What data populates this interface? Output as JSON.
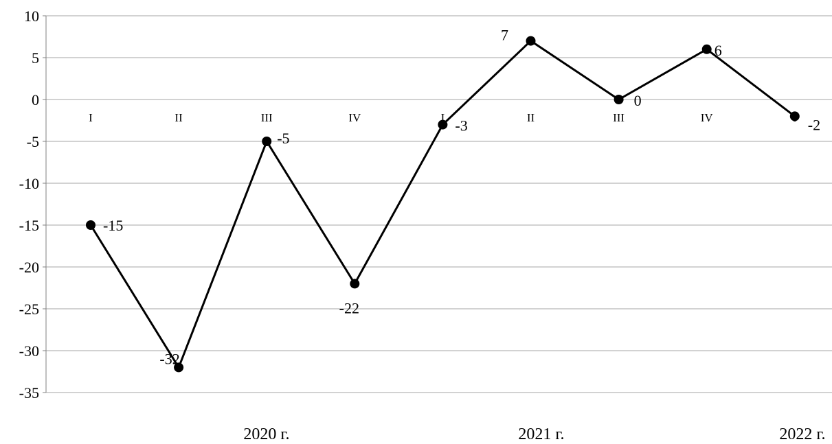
{
  "chart_data": {
    "type": "line",
    "title": "",
    "xlabel": "",
    "ylabel": "",
    "categories": [
      "I",
      "II",
      "III",
      "IV",
      "I",
      "II",
      "III",
      "IV",
      "I"
    ],
    "category_groups": [
      {
        "label": "2020 г.",
        "span": [
          0,
          3
        ]
      },
      {
        "label": "2021 г.",
        "span": [
          4,
          7
        ]
      },
      {
        "label": "2022 г.",
        "span": [
          8,
          8
        ]
      }
    ],
    "series": [
      {
        "values": [
          -15,
          -32,
          -5,
          -22,
          -3,
          7,
          0,
          6,
          -2
        ],
        "color": "#000000",
        "marker": "circle"
      }
    ],
    "data_labels": [
      "-15",
      "-32",
      "-5",
      "-22",
      "-3",
      "7",
      "0",
      "6",
      "-2"
    ],
    "ylim": [
      -35,
      10
    ],
    "yticks": [
      10,
      5,
      0,
      -5,
      -10,
      -15,
      -20,
      -25,
      -30,
      -35
    ],
    "grid": "horizontal",
    "legend": "none"
  }
}
